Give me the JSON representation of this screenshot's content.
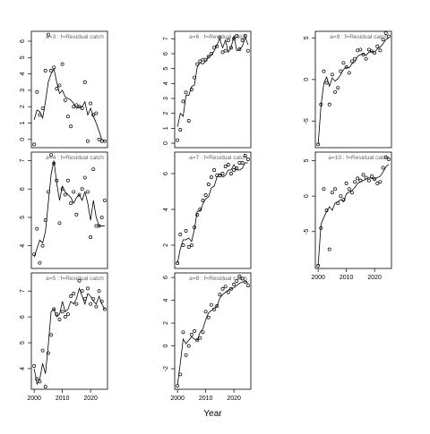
{
  "chart_data": [
    {
      "type": "line",
      "title": "a=3  :  f=Residual catch",
      "xlim": [
        1999,
        2026
      ],
      "ylim": [
        -0.5,
        6.6
      ],
      "yticks": [
        0,
        1,
        2,
        3,
        4,
        5,
        6
      ],
      "x": [
        2000,
        2001,
        2002,
        2003,
        2004,
        2005,
        2006,
        2007,
        2008,
        2009,
        2010,
        2011,
        2012,
        2013,
        2014,
        2015,
        2016,
        2017,
        2018,
        2019,
        2020,
        2021,
        2022,
        2023,
        2024,
        2025
      ],
      "series": [
        {
          "marker": "circle",
          "color": "#000000",
          "values": [
            -0.3,
            2.9,
            1.5,
            1.9,
            4.2,
            6.4,
            4.2,
            4.4,
            3.1,
            3.3,
            4.6,
            2.4,
            1.4,
            0.8,
            2.0,
            2.1,
            2.0,
            1.9,
            3.5,
            -0.1,
            2.2,
            1.5,
            1.6,
            0.0,
            -0.1,
            -0.1
          ]
        },
        {
          "marker": "none",
          "color": "#000000",
          "values": [
            1.2,
            1.8,
            1.7,
            1.3,
            2.3,
            3.5,
            4.0,
            4.3,
            3.5,
            2.8,
            3.0,
            2.6,
            2.5,
            2.4,
            2.2,
            1.9,
            2.0,
            2.0,
            2.3,
            1.5,
            1.9,
            1.4,
            1.0,
            0.5,
            0.0,
            -0.1
          ]
        }
      ]
    },
    {
      "type": "line",
      "title": "a=4  :  f=Residual catch",
      "xlim": [
        1999,
        2026
      ],
      "ylim": [
        3.2,
        7.3
      ],
      "yticks": [
        4,
        5,
        6,
        7
      ],
      "x": [
        2000,
        2001,
        2002,
        2003,
        2004,
        2005,
        2006,
        2007,
        2008,
        2009,
        2010,
        2011,
        2012,
        2013,
        2014,
        2015,
        2016,
        2017,
        2018,
        2019,
        2020,
        2021,
        2022,
        2023,
        2024,
        2025
      ],
      "series": [
        {
          "marker": "circle",
          "color": "#000000",
          "values": [
            3.7,
            4.6,
            3.4,
            4.0,
            4.9,
            5.9,
            7.2,
            6.9,
            6.3,
            4.8,
            6.0,
            5.8,
            6.3,
            5.5,
            5.9,
            5.1,
            5.8,
            6.0,
            6.4,
            5.9,
            4.3,
            6.7,
            4.7,
            4.7,
            5.0,
            5.6
          ]
        },
        {
          "marker": "none",
          "color": "#000000",
          "values": [
            3.6,
            3.9,
            4.2,
            4.1,
            4.5,
            5.5,
            6.5,
            7.0,
            6.2,
            5.6,
            6.1,
            5.9,
            5.8,
            5.7,
            5.5,
            5.7,
            5.8,
            5.6,
            5.9,
            5.5,
            4.9,
            5.6,
            5.0,
            4.7,
            4.7,
            4.7
          ]
        }
      ]
    },
    {
      "type": "line",
      "title": "a=5  :  f=Residual catch",
      "xlim": [
        1999,
        2026
      ],
      "ylim": [
        3.2,
        7.7
      ],
      "yticks": [
        4,
        5,
        6,
        7
      ],
      "xticks": [
        2000,
        2010,
        2020
      ],
      "x": [
        2000,
        2001,
        2002,
        2003,
        2004,
        2005,
        2006,
        2007,
        2008,
        2009,
        2010,
        2011,
        2012,
        2013,
        2014,
        2015,
        2016,
        2017,
        2018,
        2019,
        2020,
        2021,
        2022,
        2023,
        2024,
        2025
      ],
      "series": [
        {
          "marker": "circle",
          "color": "#000000",
          "values": [
            4.1,
            3.6,
            3.5,
            4.7,
            3.3,
            4.6,
            5.3,
            6.3,
            6.1,
            5.9,
            6.2,
            6.0,
            6.1,
            6.8,
            6.9,
            6.5,
            7.4,
            7.0,
            6.7,
            7.1,
            6.5,
            6.7,
            6.4,
            7.0,
            6.6,
            6.3
          ]
        },
        {
          "marker": "none",
          "color": "#000000",
          "values": [
            4.0,
            3.4,
            3.6,
            4.2,
            3.8,
            4.9,
            6.2,
            6.3,
            6.0,
            6.1,
            6.6,
            6.2,
            6.3,
            6.6,
            6.5,
            6.7,
            7.1,
            6.8,
            6.5,
            6.9,
            6.8,
            6.6,
            6.5,
            6.8,
            6.5,
            6.3
          ]
        }
      ]
    },
    {
      "type": "line",
      "title": "a=6  :  f=Residual catch",
      "xlim": [
        1999,
        2026
      ],
      "ylim": [
        -0.3,
        7.5
      ],
      "yticks": [
        0,
        1,
        2,
        3,
        4,
        5,
        6,
        7
      ],
      "x": [
        2000,
        2001,
        2002,
        2003,
        2004,
        2005,
        2006,
        2007,
        2008,
        2009,
        2010,
        2011,
        2012,
        2013,
        2014,
        2015,
        2016,
        2017,
        2018,
        2019,
        2020,
        2021,
        2022,
        2023,
        2024,
        2025
      ],
      "series": [
        {
          "marker": "circle",
          "color": "#000000",
          "values": [
            0.2,
            0.9,
            2.8,
            3.4,
            1.5,
            3.6,
            4.4,
            5.3,
            5.5,
            5.6,
            5.6,
            5.8,
            6.0,
            6.4,
            6.5,
            7.1,
            6.1,
            6.2,
            6.9,
            6.4,
            7.0,
            7.2,
            6.3,
            6.9,
            7.2,
            6.2
          ]
        },
        {
          "marker": "none",
          "color": "#000000",
          "values": [
            1.1,
            2.0,
            1.8,
            3.2,
            3.2,
            3.8,
            3.9,
            5.1,
            5.4,
            5.3,
            5.5,
            5.8,
            5.9,
            6.2,
            6.6,
            7.0,
            6.4,
            6.9,
            6.1,
            6.4,
            7.2,
            6.2,
            6.3,
            6.5,
            7.1,
            6.6
          ]
        }
      ]
    },
    {
      "type": "line",
      "title": "a=7  :  f=Residual catch",
      "xlim": [
        1999,
        2026
      ],
      "ylim": [
        0.7,
        7.2
      ],
      "yticks": [
        2,
        4,
        6
      ],
      "x": [
        2000,
        2001,
        2002,
        2003,
        2004,
        2005,
        2006,
        2007,
        2008,
        2009,
        2010,
        2011,
        2012,
        2013,
        2014,
        2015,
        2016,
        2017,
        2018,
        2019,
        2020,
        2021,
        2022,
        2023,
        2024,
        2025
      ],
      "series": [
        {
          "marker": "circle",
          "color": "#000000",
          "values": [
            1.0,
            2.6,
            2.0,
            2.8,
            1.9,
            2.0,
            3.0,
            3.7,
            4.0,
            4.5,
            4.8,
            5.4,
            5.8,
            6.2,
            5.9,
            5.9,
            6.0,
            6.4,
            6.5,
            6.0,
            6.2,
            6.3,
            6.6,
            6.6,
            7.0,
            6.8
          ]
        },
        {
          "marker": "none",
          "color": "#000000",
          "values": [
            1.0,
            1.8,
            2.3,
            2.3,
            2.4,
            2.2,
            2.9,
            3.9,
            3.9,
            4.3,
            4.6,
            4.7,
            5.2,
            5.3,
            5.8,
            6.0,
            5.8,
            5.9,
            6.2,
            6.2,
            6.5,
            6.2,
            6.2,
            6.3,
            6.6,
            6.6
          ]
        }
      ]
    },
    {
      "type": "line",
      "title": "a=8  :  f=Residual catch",
      "xlabel": "Year",
      "xlim": [
        1999,
        2026
      ],
      "ylim": [
        -3.8,
        6.4
      ],
      "yticks": [
        -2,
        0,
        2,
        4,
        6
      ],
      "xticks": [
        2000,
        2010,
        2020
      ],
      "x": [
        2000,
        2001,
        2002,
        2003,
        2004,
        2005,
        2006,
        2007,
        2008,
        2009,
        2010,
        2011,
        2012,
        2013,
        2014,
        2015,
        2016,
        2017,
        2018,
        2019,
        2020,
        2021,
        2022,
        2023,
        2024,
        2025
      ],
      "series": [
        {
          "marker": "circle",
          "color": "#000000",
          "values": [
            -3.5,
            -2.5,
            1.2,
            -0.8,
            0.0,
            1.0,
            1.3,
            0.5,
            0.7,
            1.2,
            3.0,
            2.5,
            3.6,
            3.2,
            3.5,
            4.5,
            5.0,
            5.2,
            4.7,
            5.0,
            5.4,
            5.7,
            6.1,
            5.9,
            5.6,
            5.3
          ]
        },
        {
          "marker": "none",
          "color": "#000000",
          "values": [
            -3.4,
            -1.5,
            0.6,
            0.2,
            0.5,
            0.8,
            0.6,
            0.5,
            1.2,
            1.5,
            2.3,
            2.9,
            3.1,
            3.3,
            3.5,
            4.2,
            4.5,
            4.7,
            4.9,
            5.0,
            5.1,
            5.3,
            5.5,
            5.6,
            5.7,
            5.5
          ]
        }
      ]
    },
    {
      "type": "line",
      "title": "a=9  :  f=Residual catch",
      "xlim": [
        1999,
        2026
      ],
      "ylim": [
        -8.2,
        5.8
      ],
      "yticks": [
        -5,
        0,
        5
      ],
      "x": [
        2000,
        2001,
        2002,
        2003,
        2004,
        2005,
        2006,
        2007,
        2008,
        2009,
        2010,
        2011,
        2012,
        2013,
        2014,
        2015,
        2016,
        2017,
        2018,
        2019,
        2020,
        2021,
        2022,
        2023,
        2024,
        2025
      ],
      "series": [
        {
          "marker": "circle",
          "color": "#000000",
          "values": [
            -7.8,
            -3.0,
            1.0,
            -0.4,
            -3.0,
            0.6,
            -1.5,
            -1.0,
            1.0,
            2.0,
            1.5,
            0.8,
            2.2,
            2.5,
            3.5,
            3.6,
            3.0,
            2.5,
            3.6,
            3.4,
            3.2,
            4.0,
            3.5,
            4.8,
            5.6,
            5.2
          ]
        },
        {
          "marker": "none",
          "color": "#000000",
          "values": [
            -7.8,
            -3.2,
            -0.5,
            0.3,
            -0.8,
            0.2,
            -0.2,
            0.1,
            0.6,
            1.2,
            1.5,
            1.4,
            1.9,
            2.1,
            2.8,
            3.0,
            3.1,
            2.9,
            3.3,
            3.4,
            3.3,
            3.7,
            3.9,
            4.3,
            4.8,
            5.0
          ]
        }
      ]
    },
    {
      "type": "line",
      "title": "a=10  :  f=Residual catch",
      "xlim": [
        1999,
        2026
      ],
      "ylim": [
        -10.2,
        6.2
      ],
      "yticks": [
        -5,
        0,
        5
      ],
      "xticks": [
        2000,
        2010,
        2020
      ],
      "x": [
        2000,
        2001,
        2002,
        2003,
        2004,
        2005,
        2006,
        2007,
        2008,
        2009,
        2010,
        2011,
        2012,
        2013,
        2014,
        2015,
        2016,
        2017,
        2018,
        2019,
        2020,
        2021,
        2022,
        2023,
        2024,
        2025
      ],
      "series": [
        {
          "marker": "circle",
          "color": "#000000",
          "values": [
            -9.8,
            -4.5,
            1.0,
            -2.0,
            -7.5,
            0.5,
            1.0,
            -1.0,
            0.0,
            -0.5,
            1.8,
            1.0,
            0.5,
            2.0,
            2.5,
            2.2,
            3.0,
            2.6,
            2.2,
            2.8,
            2.4,
            1.8,
            2.0,
            4.0,
            5.5,
            5.2
          ]
        },
        {
          "marker": "none",
          "color": "#000000",
          "values": [
            -9.8,
            -4.0,
            -3.0,
            -2.2,
            -1.5,
            -2.0,
            -1.0,
            -0.8,
            -0.5,
            -0.8,
            0.3,
            0.6,
            0.8,
            1.2,
            1.8,
            2.0,
            2.2,
            2.4,
            2.6,
            2.5,
            2.4,
            2.6,
            2.8,
            3.4,
            4.1,
            4.5
          ]
        }
      ]
    }
  ]
}
